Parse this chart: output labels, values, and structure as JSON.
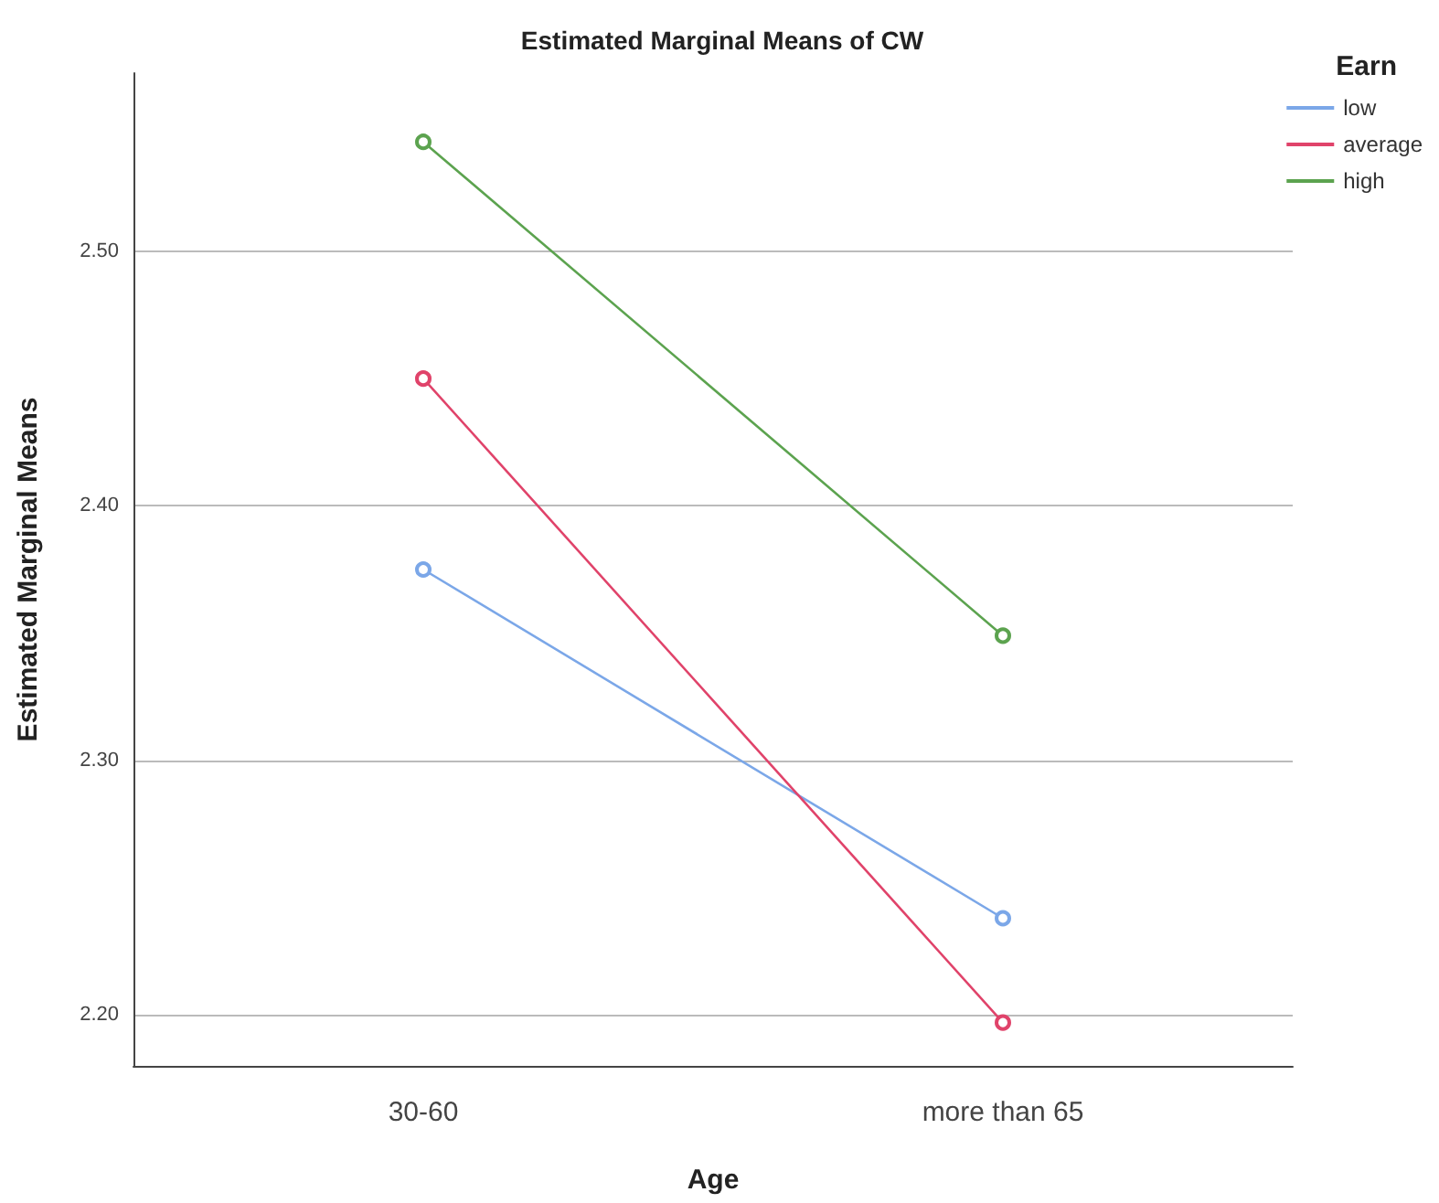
{
  "chart_data": {
    "type": "line",
    "title": "Estimated Marginal Means of CW",
    "xlabel": "Age",
    "ylabel": "Estimated Marginal Means",
    "legend_title": "Earn",
    "categories": [
      "30-60",
      "more than 65"
    ],
    "series": [
      {
        "name": "low",
        "color": "#7ba7e8",
        "values": [
          2.375,
          2.238
        ]
      },
      {
        "name": "average",
        "color": "#e0436a",
        "values": [
          2.45,
          2.197
        ]
      },
      {
        "name": "high",
        "color": "#5ca34f",
        "values": [
          2.543,
          2.349
        ]
      }
    ],
    "ylim": [
      2.18,
      2.57
    ],
    "yticks": [
      {
        "value": 2.2,
        "label": "2.20"
      },
      {
        "value": 2.3,
        "label": "2.30"
      },
      {
        "value": 2.4,
        "label": "2.40"
      },
      {
        "value": 2.5,
        "label": "2.50"
      }
    ],
    "grid": "y",
    "legend": "top right",
    "marker": "circle",
    "line_style": "solid"
  }
}
